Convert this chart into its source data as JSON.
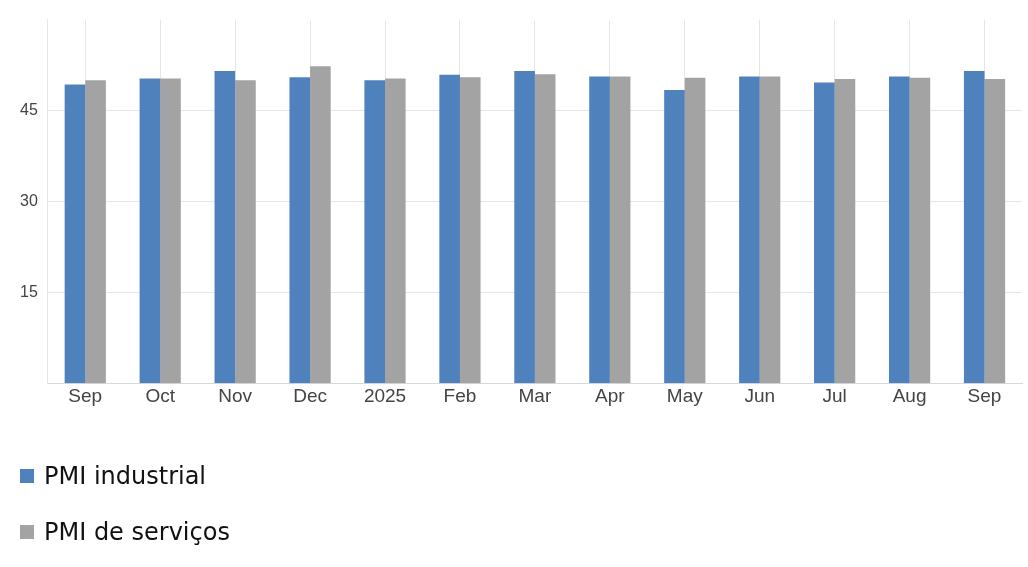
{
  "chart_data": {
    "type": "bar",
    "categories": [
      "Sep",
      "Oct",
      "Nov",
      "Dec",
      "2025",
      "Feb",
      "Mar",
      "Apr",
      "May",
      "Jun",
      "Jul",
      "Aug",
      "Sep"
    ],
    "series": [
      {
        "name": "PMI industrial",
        "color": "#4f81bd",
        "values": [
          49.3,
          50.3,
          51.5,
          50.5,
          50.0,
          50.9,
          51.5,
          50.6,
          48.4,
          50.6,
          49.6,
          50.6,
          51.5
        ]
      },
      {
        "name": "PMI de serviços",
        "color": "#a3a3a3",
        "values": [
          50.0,
          50.3,
          50.0,
          52.3,
          50.3,
          50.5,
          51.0,
          50.6,
          50.4,
          50.6,
          50.2,
          50.4,
          50.2
        ]
      }
    ],
    "ylim": [
      0,
      60
    ],
    "yticks": [
      15,
      30,
      45
    ],
    "grid": true,
    "legend": "bottom left"
  }
}
